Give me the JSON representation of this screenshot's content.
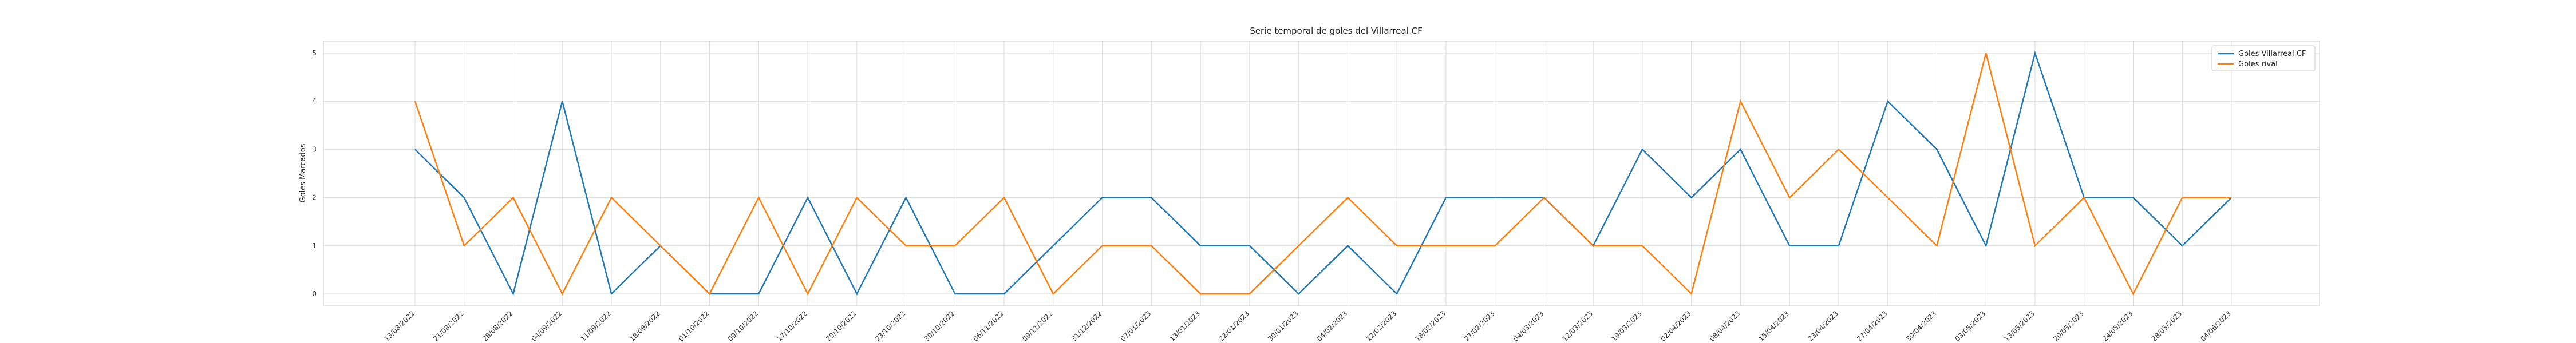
{
  "chart_data": {
    "type": "line",
    "title": "Serie temporal de goles del Villarreal CF",
    "xlabel": "",
    "ylabel": "Goles Marcados",
    "ylim": [
      -0.25,
      5.25
    ],
    "yticks": [
      0,
      1,
      2,
      3,
      4,
      5
    ],
    "grid": true,
    "legend_position": "top-right",
    "categories": [
      "13/08/2022",
      "21/08/2022",
      "28/08/2022",
      "04/09/2022",
      "11/09/2022",
      "18/09/2022",
      "01/10/2022",
      "09/10/2022",
      "17/10/2022",
      "20/10/2022",
      "23/10/2022",
      "30/10/2022",
      "06/11/2022",
      "09/11/2022",
      "31/12/2022",
      "07/01/2023",
      "13/01/2023",
      "22/01/2023",
      "30/01/2023",
      "04/02/2023",
      "12/02/2023",
      "18/02/2023",
      "27/02/2023",
      "04/03/2023",
      "12/03/2023",
      "19/03/2023",
      "02/04/2023",
      "08/04/2023",
      "15/04/2023",
      "23/04/2023",
      "27/04/2023",
      "30/04/2023",
      "03/05/2023",
      "13/05/2023",
      "20/05/2023",
      "24/05/2023",
      "28/05/2023",
      "04/06/2023"
    ],
    "series": [
      {
        "name": "Goles Villarreal CF",
        "color": "#1f77b4",
        "values": [
          3,
          2,
          0,
          4,
          0,
          1,
          0,
          0,
          2,
          0,
          2,
          0,
          0,
          1,
          2,
          2,
          1,
          1,
          0,
          1,
          0,
          2,
          2,
          2,
          1,
          3,
          2,
          3,
          1,
          1,
          4,
          3,
          1,
          5,
          2,
          2,
          1,
          2
        ]
      },
      {
        "name": "Goles rival",
        "color": "#ff7f0e",
        "values": [
          4,
          1,
          2,
          0,
          2,
          1,
          0,
          2,
          0,
          2,
          1,
          1,
          2,
          0,
          1,
          1,
          0,
          0,
          1,
          2,
          1,
          1,
          1,
          2,
          1,
          1,
          0,
          4,
          2,
          3,
          2,
          1,
          5,
          1,
          2,
          0,
          2,
          2
        ]
      }
    ]
  }
}
